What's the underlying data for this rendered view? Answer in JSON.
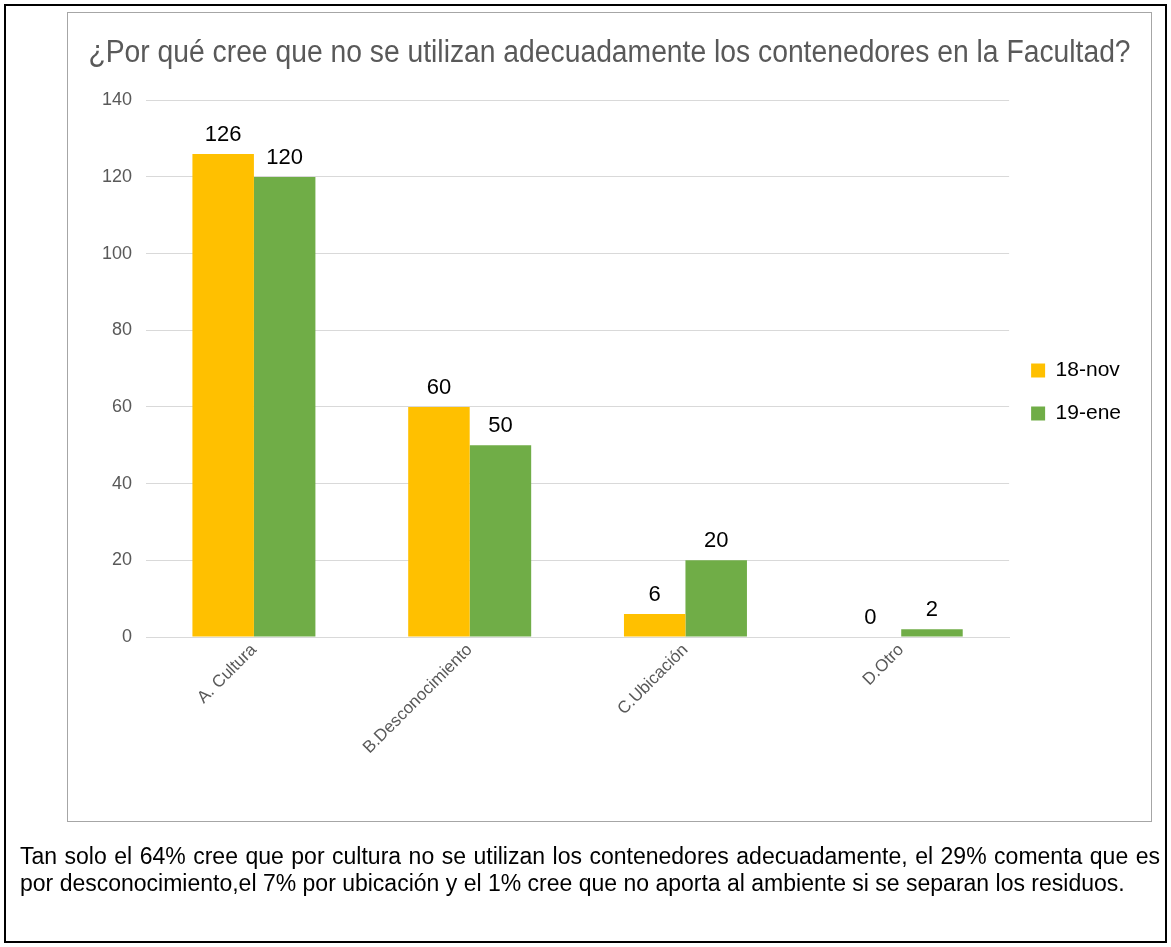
{
  "chart_data": {
    "type": "bar",
    "title": "¿Por qué cree que no se utilizan adecuadamente los contenedores en la Facultad?",
    "categories": [
      "A. Cultura",
      "B.Desconocimiento",
      "C.Ubicación",
      "D.Otro"
    ],
    "series": [
      {
        "name": "18-nov",
        "color": "#ffc000",
        "values": [
          126,
          60,
          6,
          0
        ]
      },
      {
        "name": "19-ene",
        "color": "#70ad47",
        "values": [
          120,
          50,
          20,
          2
        ]
      }
    ],
    "ylim": [
      0,
      140
    ],
    "yticks": [
      0,
      20,
      40,
      60,
      80,
      100,
      120,
      140
    ],
    "grid": "y",
    "legend": "right",
    "data_labels": true,
    "annotations": [
      "Tan solo el 64% cree que por cultura no se utilizan los contenedores adecuadamente, el 29% comenta que es por desconocimiento,el 7% por ubicación y el 1% cree que no aporta al ambiente si se separan los residuos."
    ]
  }
}
